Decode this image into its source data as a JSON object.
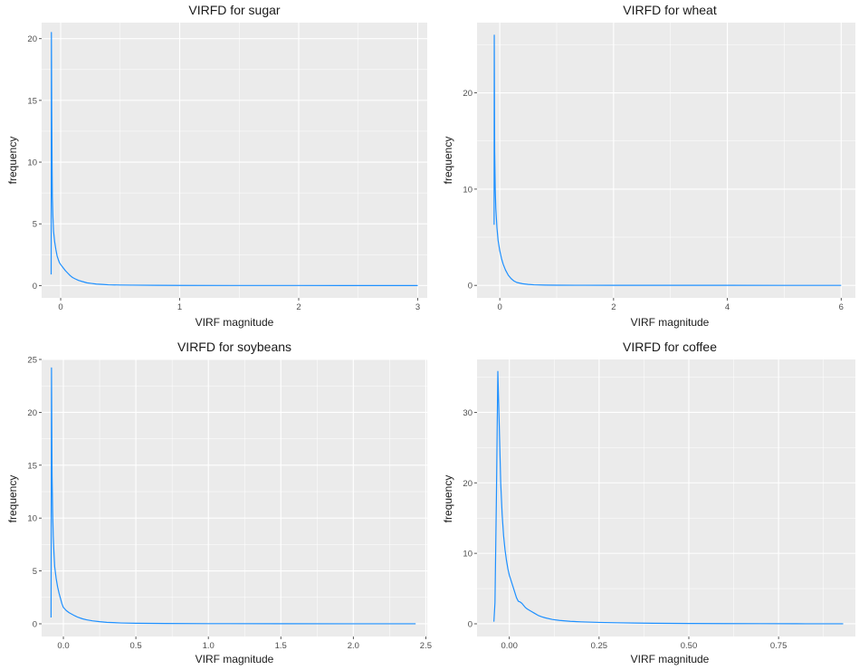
{
  "chart_data": [
    {
      "type": "line",
      "title": "VIRFD for sugar",
      "xlabel": "VIRF magnitude",
      "ylabel": "frequency",
      "xlim": [
        -0.16,
        3.08
      ],
      "ylim": [
        -1.0,
        21.3
      ],
      "xticks": [
        0,
        1,
        2,
        3
      ],
      "xtick_labels": [
        "0",
        "1",
        "2",
        "3"
      ],
      "yticks": [
        0,
        5,
        10,
        15,
        20
      ],
      "ytick_labels": [
        "0",
        "5",
        "10",
        "15",
        "20"
      ],
      "grid": true,
      "color": "#1e90ff",
      "x": [
        -0.08,
        -0.078,
        -0.075,
        -0.072,
        -0.07,
        -0.065,
        -0.06,
        -0.05,
        -0.04,
        -0.03,
        -0.02,
        -0.01,
        0.0,
        0.02,
        0.04,
        0.06,
        0.08,
        0.1,
        0.12,
        0.15,
        0.18,
        0.22,
        0.26,
        0.3,
        0.35,
        0.4,
        0.5,
        0.6,
        0.8,
        1.0,
        1.5,
        2.0,
        2.5,
        3.0
      ],
      "y": [
        0.9,
        20.5,
        14.0,
        9.5,
        7.2,
        5.5,
        4.4,
        3.5,
        2.9,
        2.4,
        2.1,
        1.85,
        1.7,
        1.45,
        1.2,
        1.0,
        0.8,
        0.65,
        0.55,
        0.42,
        0.33,
        0.22,
        0.17,
        0.12,
        0.09,
        0.06,
        0.04,
        0.03,
        0.02,
        0.01,
        0.005,
        0.003,
        0.002,
        0.001
      ]
    },
    {
      "type": "line",
      "title": "VIRFD for wheat",
      "xlabel": "VIRF magnitude",
      "ylabel": "frequency",
      "xlim": [
        -0.4,
        6.25
      ],
      "ylim": [
        -1.3,
        27.3
      ],
      "xticks": [
        0,
        2,
        4,
        6
      ],
      "xtick_labels": [
        "0",
        "2",
        "4",
        "6"
      ],
      "yticks": [
        0,
        10,
        20
      ],
      "ytick_labels": [
        "0",
        "10",
        "20"
      ],
      "grid": true,
      "color": "#1e90ff",
      "x": [
        -0.1,
        -0.097,
        -0.09,
        -0.08,
        -0.07,
        -0.05,
        -0.03,
        0.0,
        0.03,
        0.06,
        0.1,
        0.15,
        0.2,
        0.25,
        0.3,
        0.4,
        0.5,
        0.6,
        0.8,
        1.0,
        1.5,
        2.0,
        3.0,
        4.0,
        5.0,
        6.0
      ],
      "y": [
        6.3,
        26.0,
        14.0,
        10.0,
        8.0,
        6.0,
        4.7,
        3.6,
        2.8,
        2.2,
        1.6,
        1.05,
        0.7,
        0.45,
        0.3,
        0.17,
        0.1,
        0.06,
        0.03,
        0.02,
        0.01,
        0.005,
        0.003,
        0.002,
        0.001,
        0.0
      ]
    },
    {
      "type": "line",
      "title": "VIRFD for soybeans",
      "xlabel": "VIRF magnitude",
      "ylabel": "frequency",
      "xlim": [
        -0.15,
        2.51
      ],
      "ylim": [
        -1.2,
        25.0
      ],
      "xticks": [
        0.0,
        0.5,
        1.0,
        1.5,
        2.0,
        2.5
      ],
      "xtick_labels": [
        "0.0",
        "0.5",
        "1.0",
        "1.5",
        "2.0",
        "2.5"
      ],
      "yticks": [
        0,
        5,
        10,
        15,
        20,
        25
      ],
      "ytick_labels": [
        "0",
        "5",
        "10",
        "15",
        "20",
        "25"
      ],
      "grid": true,
      "color": "#1e90ff",
      "x": [
        -0.085,
        -0.082,
        -0.078,
        -0.074,
        -0.07,
        -0.065,
        -0.06,
        -0.05,
        -0.04,
        -0.03,
        -0.02,
        -0.01,
        0.0,
        0.02,
        0.04,
        0.06,
        0.08,
        0.1,
        0.13,
        0.16,
        0.2,
        0.25,
        0.3,
        0.4,
        0.5,
        0.7,
        1.0,
        1.5,
        2.0,
        2.43
      ],
      "y": [
        0.6,
        24.2,
        14.0,
        10.5,
        8.3,
        6.7,
        5.4,
        4.3,
        3.5,
        2.9,
        2.4,
        1.9,
        1.55,
        1.25,
        1.05,
        0.9,
        0.75,
        0.62,
        0.48,
        0.38,
        0.28,
        0.2,
        0.14,
        0.08,
        0.05,
        0.03,
        0.015,
        0.008,
        0.004,
        0.002
      ]
    },
    {
      "type": "line",
      "title": "VIRFD for coffee",
      "xlabel": "VIRF magnitude",
      "ylabel": "frequency",
      "xlim": [
        -0.09,
        0.964
      ],
      "ylim": [
        -1.8,
        37.5
      ],
      "xticks": [
        0.0,
        0.25,
        0.5,
        0.75
      ],
      "xtick_labels": [
        "0.00",
        "0.25",
        "0.50",
        "0.75"
      ],
      "yticks": [
        0,
        10,
        20,
        30
      ],
      "ytick_labels": [
        "0",
        "10",
        "20",
        "30"
      ],
      "grid": true,
      "color": "#1e90ff",
      "x": [
        -0.043,
        -0.04,
        -0.036,
        -0.032,
        -0.028,
        -0.024,
        -0.02,
        -0.016,
        -0.012,
        -0.008,
        -0.004,
        0.0,
        0.005,
        0.01,
        0.015,
        0.02,
        0.025,
        0.03,
        0.035,
        0.04,
        0.045,
        0.05,
        0.06,
        0.07,
        0.08,
        0.09,
        0.1,
        0.12,
        0.14,
        0.17,
        0.2,
        0.25,
        0.3,
        0.35,
        0.4,
        0.5,
        0.6,
        0.7,
        0.8,
        0.93
      ],
      "y": [
        0.3,
        3.0,
        18.0,
        35.8,
        28.0,
        20.0,
        15.5,
        12.5,
        10.5,
        9.0,
        7.8,
        6.9,
        6.1,
        5.3,
        4.5,
        3.7,
        3.2,
        3.1,
        2.9,
        2.6,
        2.3,
        2.1,
        1.8,
        1.5,
        1.2,
        1.0,
        0.85,
        0.62,
        0.48,
        0.35,
        0.28,
        0.2,
        0.15,
        0.11,
        0.08,
        0.05,
        0.03,
        0.02,
        0.01,
        0.005
      ]
    }
  ]
}
